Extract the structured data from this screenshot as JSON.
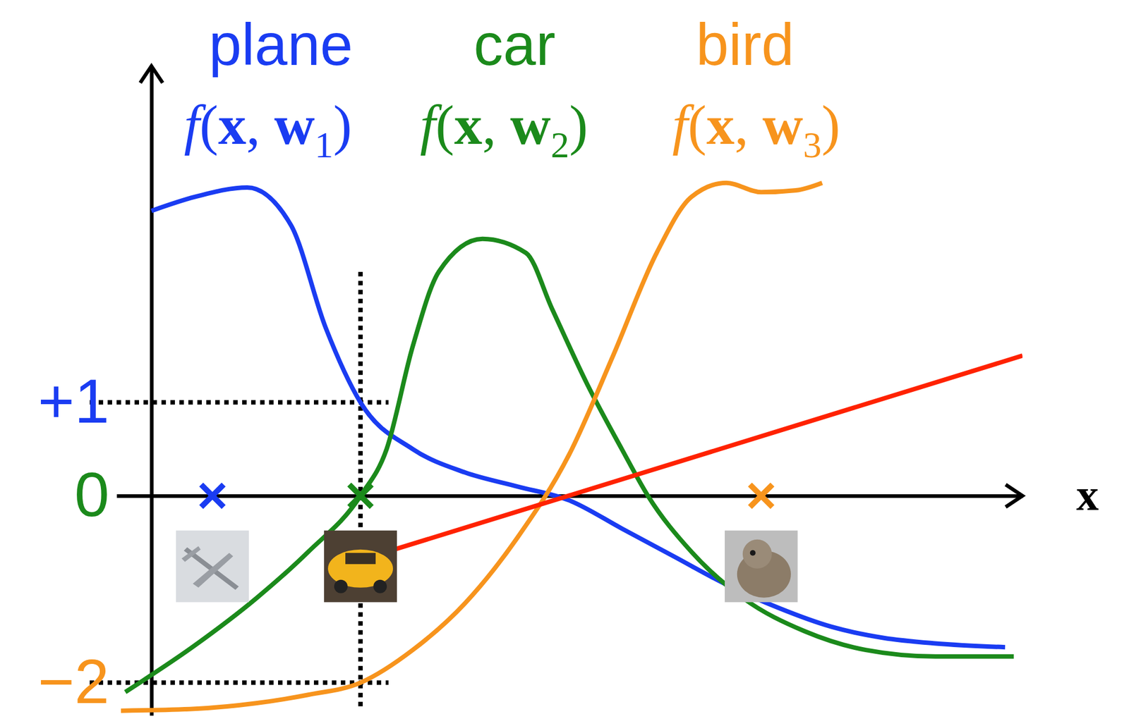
{
  "chart_data": {
    "type": "line",
    "xlabel": "x",
    "xlim": [
      -0.4,
      10
    ],
    "ylim": [
      -2.35,
      4.6
    ],
    "yticks": [
      {
        "value": 1,
        "label": "+1"
      },
      0,
      {
        "value": -2,
        "label": "−2"
      }
    ],
    "tick_labels": "y",
    "series": [
      {
        "name": "plane",
        "label": "f(x, w1)",
        "color": "#1a3cf2",
        "x": [
          0,
          0.5,
          1.1,
          1.6,
          2.0,
          2.4,
          3.0,
          3.6,
          4.2,
          4.8,
          5.4,
          6.0,
          6.6,
          7.2,
          7.8,
          8.4,
          9.0,
          9.8
        ],
        "values": [
          3.05,
          3.2,
          3.3,
          2.9,
          1.8,
          1.0,
          0.5,
          0.25,
          0.1,
          -0.05,
          -0.35,
          -0.65,
          -0.95,
          -1.2,
          -1.4,
          -1.52,
          -1.58,
          -1.62
        ]
      },
      {
        "name": "car",
        "label": "f(x, w2)",
        "color": "#1b8a1b",
        "x": [
          -0.3,
          0.5,
          1.2,
          1.8,
          2.4,
          2.7,
          3.0,
          3.3,
          3.8,
          4.3,
          4.6,
          5.0,
          5.4,
          5.7,
          6.2,
          6.8,
          7.5,
          8.2,
          9.0,
          9.9
        ],
        "values": [
          -2.1,
          -1.6,
          -1.1,
          -0.6,
          0.0,
          0.5,
          1.6,
          2.4,
          2.75,
          2.6,
          2.0,
          1.2,
          0.5,
          0.0,
          -0.6,
          -1.1,
          -1.45,
          -1.65,
          -1.72,
          -1.72
        ]
      },
      {
        "name": "bird",
        "label": "f(x, w3)",
        "color": "#f7941d",
        "x": [
          -0.35,
          0.5,
          1.2,
          1.8,
          2.4,
          3.0,
          3.6,
          4.2,
          4.8,
          5.3,
          5.8,
          6.2,
          6.6,
          7.0,
          7.4,
          7.7
        ],
        "values": [
          -2.3,
          -2.28,
          -2.22,
          -2.13,
          -2.0,
          -1.65,
          -1.15,
          -0.45,
          0.45,
          1.5,
          2.6,
          3.2,
          3.35,
          3.25,
          3.27,
          3.35
        ]
      },
      {
        "color": "#ff2200",
        "x": [
          2.7,
          10
        ],
        "values": [
          -0.6,
          1.5
        ]
      },
      {
        "type": "scatter",
        "marker": "cross",
        "colors": [
          "#1a3cf2",
          "#1b8a1b",
          "#f7941d"
        ],
        "x": [
          0.7,
          2.4,
          7.0
        ],
        "values": [
          0,
          0,
          0
        ]
      }
    ]
  }
}
